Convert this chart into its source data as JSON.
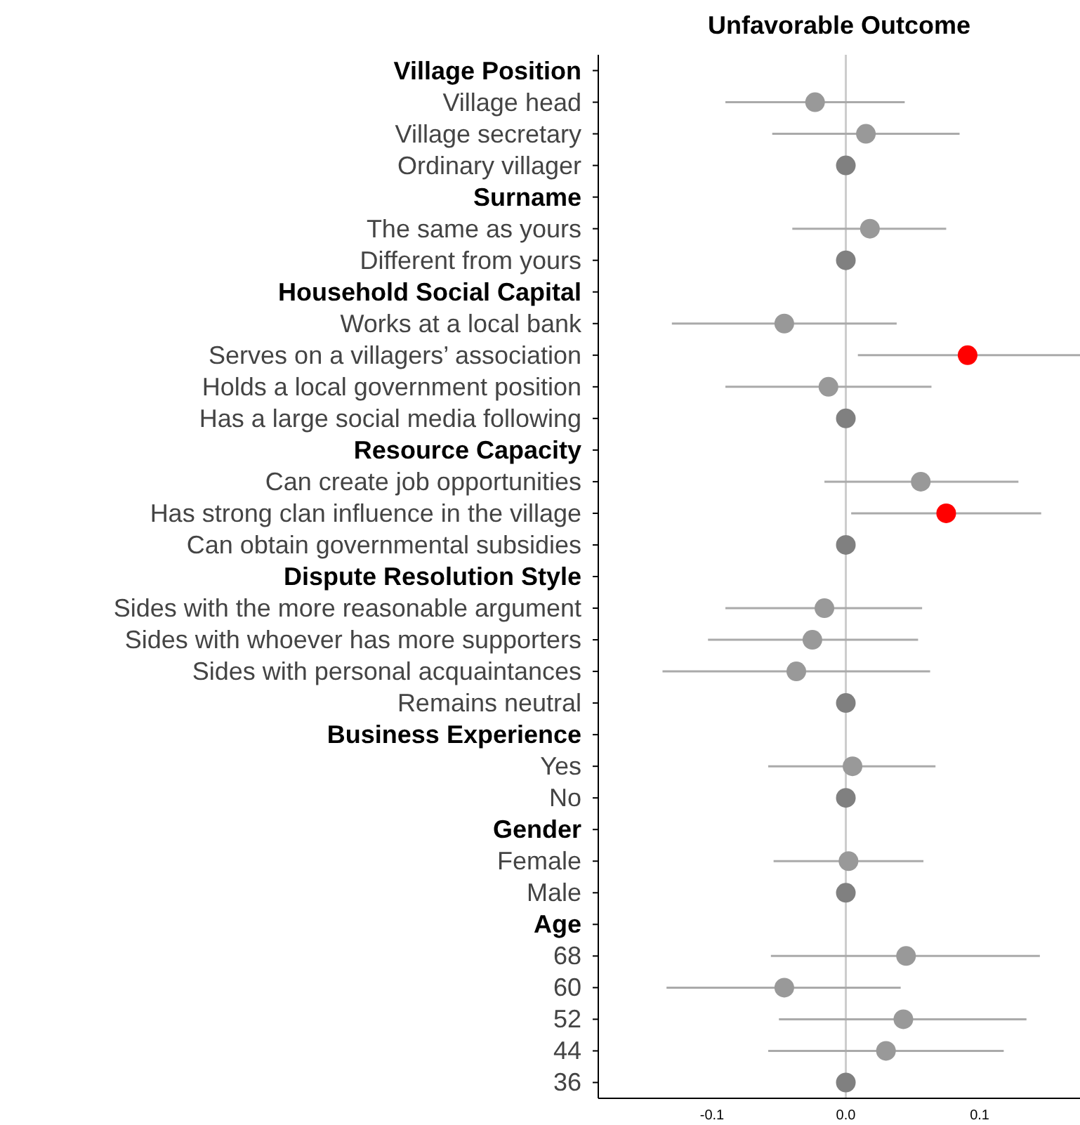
{
  "chart_data": {
    "type": "scatter",
    "title": "Unfavorable Outcome",
    "categories": [
      "Village Position",
      "Village head",
      "Village secretary",
      "Ordinary villager",
      "Surname",
      "The same as yours",
      "Different from yours",
      "Household Social Capital",
      "Works at a local bank",
      "Serves on a villagers’ association",
      "Holds a local government position",
      "Has a large social media following",
      "Resource Capacity",
      "Can create job opportunities",
      "Has strong clan influence in the village",
      "Can obtain governmental subsidies",
      "Dispute Resolution Style",
      "Sides with the more reasonable argument",
      "Sides with whoever has more supporters",
      "Sides with personal acquaintances",
      "Remains neutral",
      "Business Experience",
      "Yes",
      "No",
      "Gender",
      "Female",
      "Male",
      "Age",
      "68",
      "60",
      "52",
      "44",
      "36"
    ],
    "orientation": "horizontal",
    "values": [
      null,
      -0.023,
      0.015,
      0,
      null,
      0.018,
      0,
      null,
      -0.046,
      0.091,
      -0.013,
      0,
      null,
      0.056,
      0.075,
      0,
      null,
      -0.016,
      -0.025,
      -0.037,
      0,
      null,
      0.005,
      0,
      null,
      0.002,
      0,
      null,
      0.045,
      -0.046,
      0.043,
      0.03,
      0
    ],
    "errors": [
      null,
      [
        -0.09,
        0.044
      ],
      [
        -0.055,
        0.085
      ],
      null,
      null,
      [
        -0.04,
        0.075
      ],
      null,
      null,
      [
        -0.13,
        0.038
      ],
      [
        0.009,
        0.175
      ],
      [
        -0.09,
        0.064
      ],
      null,
      null,
      [
        -0.016,
        0.129
      ],
      [
        0.004,
        0.146
      ],
      null,
      null,
      [
        -0.09,
        0.057
      ],
      [
        -0.103,
        0.054
      ],
      [
        -0.137,
        0.063
      ],
      null,
      null,
      [
        -0.058,
        0.067
      ],
      null,
      null,
      [
        -0.054,
        0.058
      ],
      null,
      null,
      [
        -0.056,
        0.145
      ],
      [
        -0.134,
        0.041
      ],
      [
        -0.05,
        0.135
      ],
      [
        -0.058,
        0.118
      ],
      null
    ],
    "colors": [
      null,
      "#999999",
      "#999999",
      "#808080",
      null,
      "#999999",
      "#808080",
      null,
      "#999999",
      "#ff0000",
      "#999999",
      "#808080",
      null,
      "#999999",
      "#ff0000",
      "#808080",
      null,
      "#999999",
      "#999999",
      "#999999",
      "#808080",
      null,
      "#999999",
      "#808080",
      null,
      "#999999",
      "#808080",
      null,
      "#999999",
      "#999999",
      "#999999",
      "#999999",
      "#808080"
    ],
    "xlim": [
      -0.185,
      0.175
    ],
    "xticks": [
      {
        "value": -0.1,
        "label": "-0.1"
      },
      {
        "value": 0,
        "label": "0.0"
      },
      {
        "value": 0.1,
        "label": "0.1"
      }
    ],
    "ref_lines": [
      {
        "axis": "x",
        "value": 0,
        "color": "#cccccc"
      }
    ],
    "grid": false,
    "legend": false,
    "marker": "circle"
  }
}
